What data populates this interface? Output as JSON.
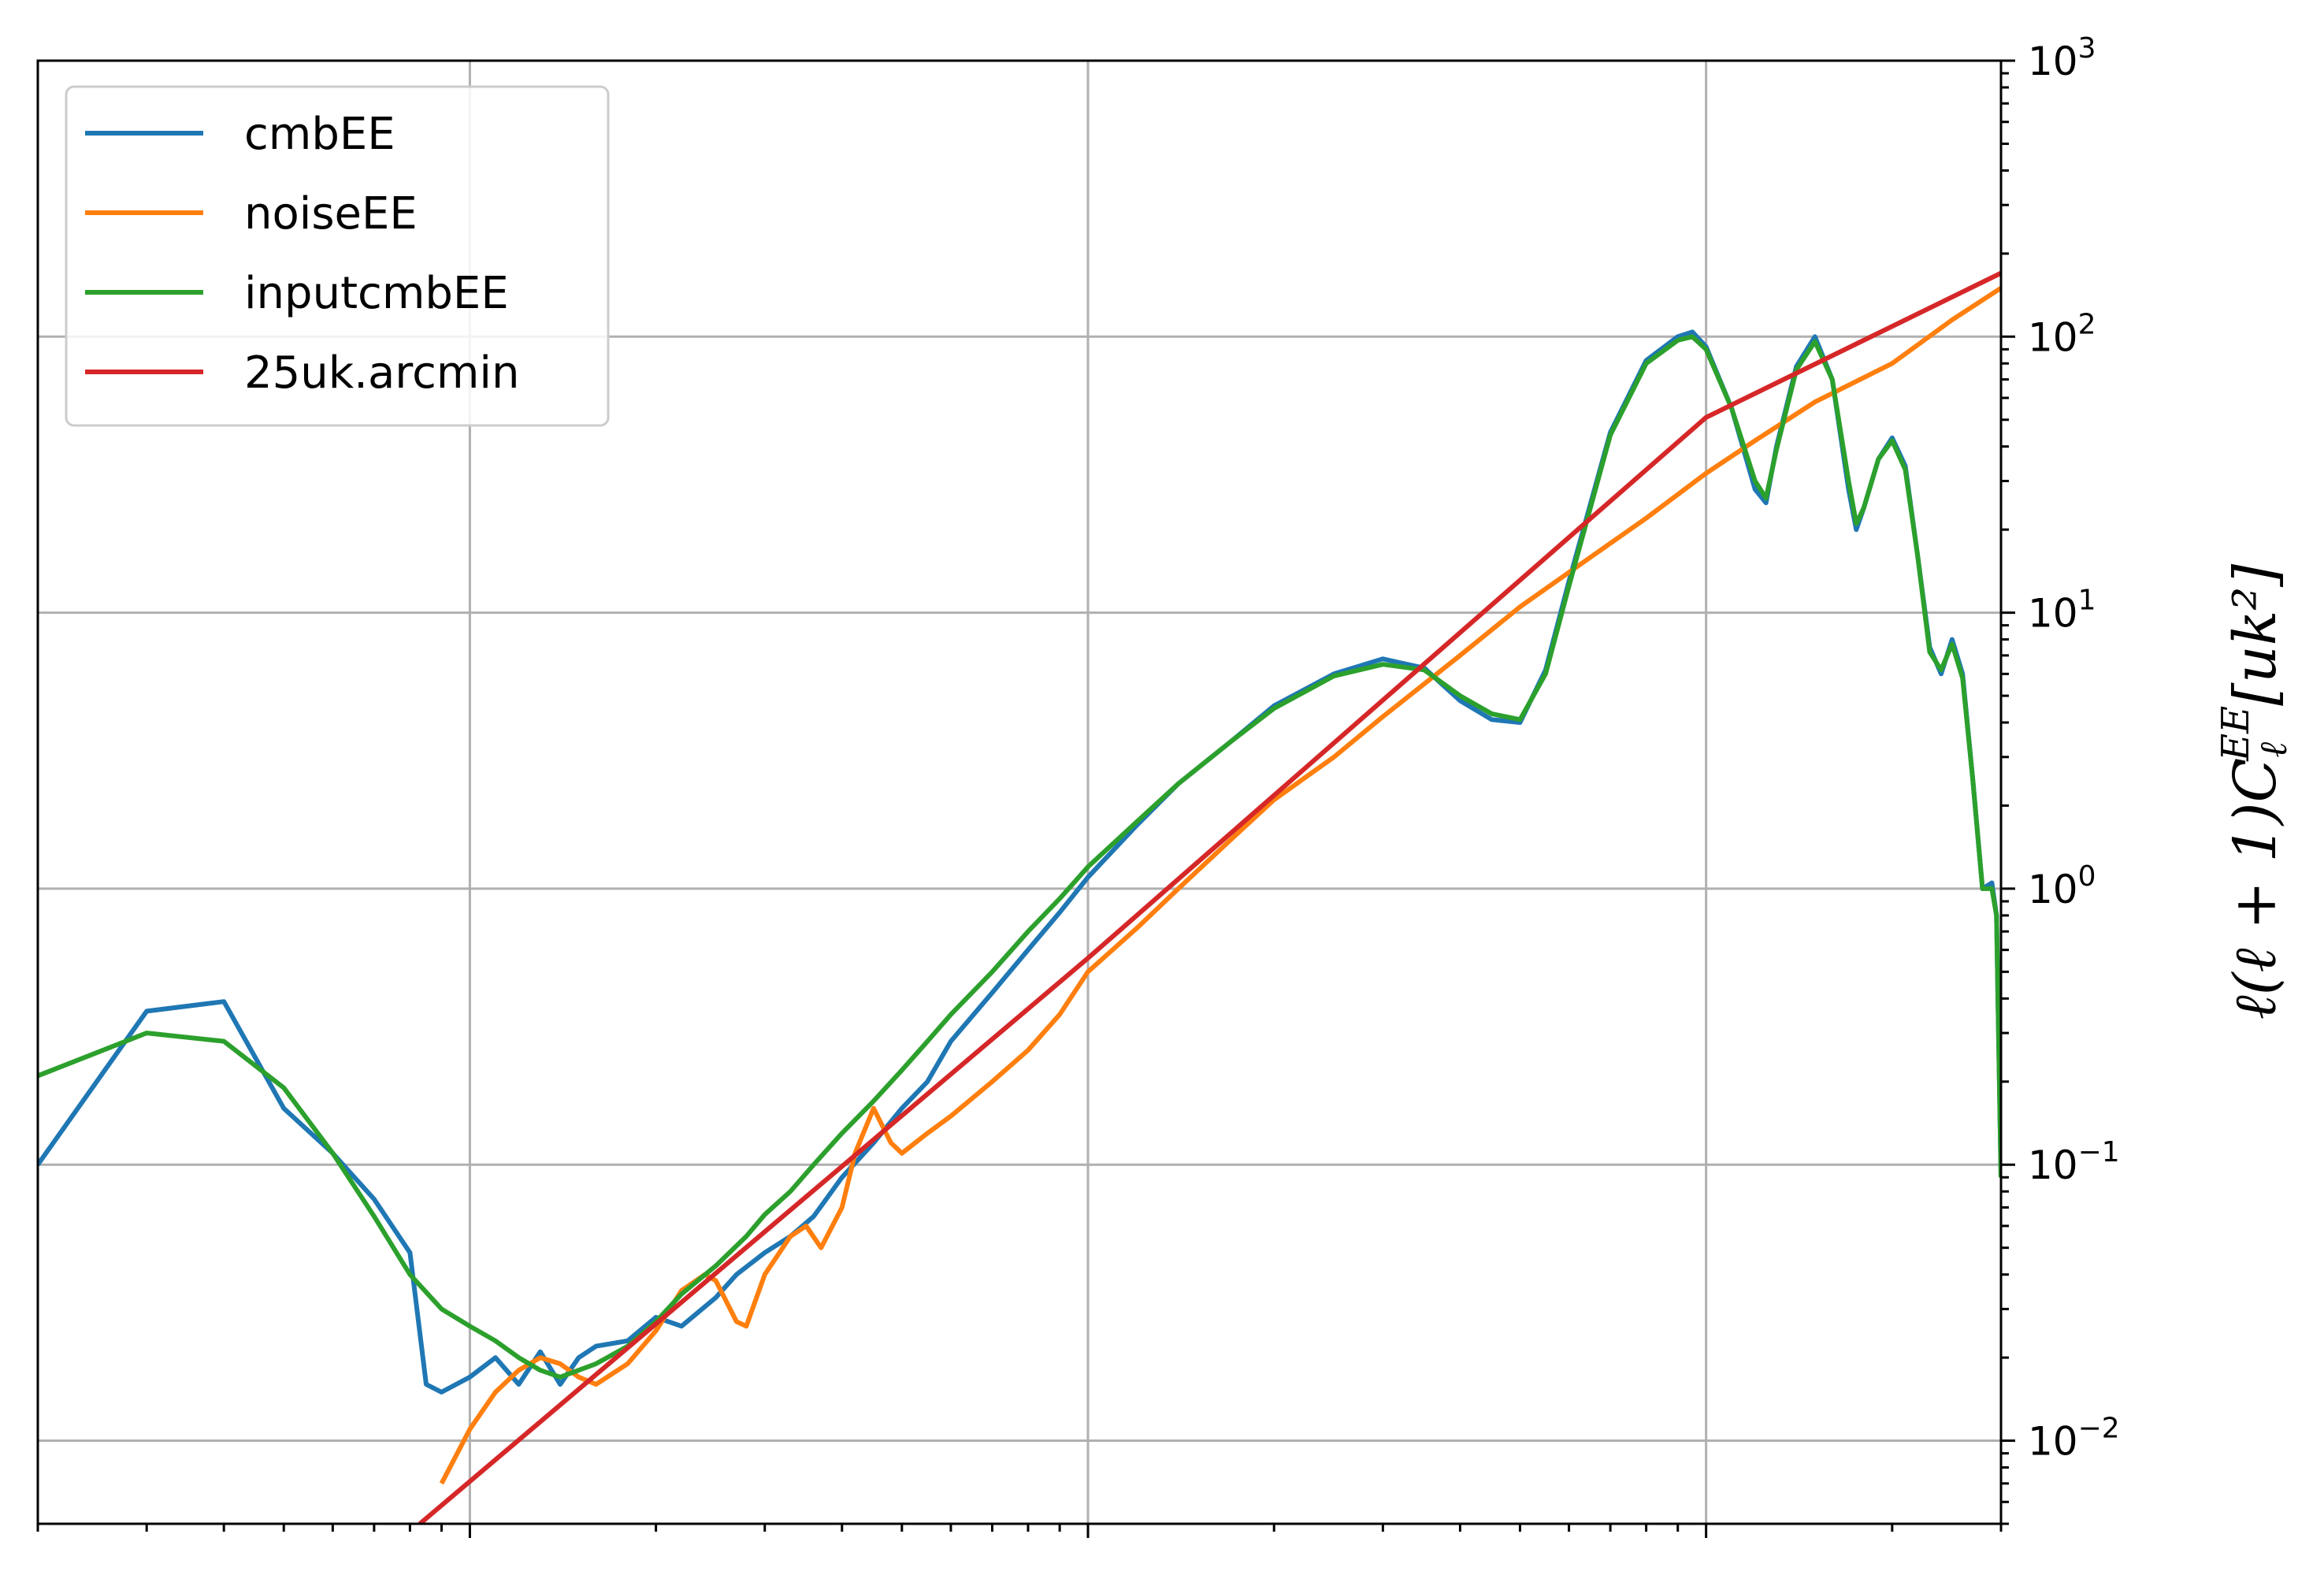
{
  "chart_data": {
    "type": "line",
    "x_scale": "log",
    "y_scale": "log",
    "xlim": [
      2,
      3000
    ],
    "ylim": [
      0.005,
      1000
    ],
    "grid": true,
    "legend_position": "upper-left",
    "y_axis_side": "right",
    "ylabel": "ℓ(ℓ + 1)C",
    "ylabel_sub": "ℓ",
    "ylabel_sup": "EE",
    "ylabel_unit": "[uk²]",
    "y_ticks": [
      {
        "value": 0.01,
        "base": "10",
        "exp": "−2"
      },
      {
        "value": 0.1,
        "base": "10",
        "exp": "−1"
      },
      {
        "value": 1,
        "base": "10",
        "exp": "0"
      },
      {
        "value": 10,
        "base": "10",
        "exp": "1"
      },
      {
        "value": 100,
        "base": "10",
        "exp": "2"
      },
      {
        "value": 1000,
        "base": "10",
        "exp": "3"
      }
    ],
    "x_major_ticks": [
      10,
      100,
      1000
    ],
    "series": [
      {
        "name": "cmbEE",
        "color": "#1f77b4",
        "points": [
          [
            2,
            0.1
          ],
          [
            3,
            0.36
          ],
          [
            4,
            0.39
          ],
          [
            5,
            0.16
          ],
          [
            6,
            0.11
          ],
          [
            7,
            0.075
          ],
          [
            8,
            0.048
          ],
          [
            8.5,
            0.016
          ],
          [
            9,
            0.015
          ],
          [
            10,
            0.017
          ],
          [
            11,
            0.02
          ],
          [
            12,
            0.016
          ],
          [
            13,
            0.021
          ],
          [
            14,
            0.016
          ],
          [
            15,
            0.02
          ],
          [
            16,
            0.022
          ],
          [
            18,
            0.023
          ],
          [
            20,
            0.028
          ],
          [
            22,
            0.026
          ],
          [
            25,
            0.033
          ],
          [
            27,
            0.04
          ],
          [
            30,
            0.048
          ],
          [
            33,
            0.055
          ],
          [
            36,
            0.065
          ],
          [
            40,
            0.09
          ],
          [
            45,
            0.12
          ],
          [
            50,
            0.16
          ],
          [
            55,
            0.2
          ],
          [
            60,
            0.28
          ],
          [
            70,
            0.42
          ],
          [
            80,
            0.6
          ],
          [
            90,
            0.82
          ],
          [
            100,
            1.1
          ],
          [
            120,
            1.7
          ],
          [
            140,
            2.4
          ],
          [
            170,
            3.4
          ],
          [
            200,
            4.6
          ],
          [
            250,
            6.0
          ],
          [
            300,
            6.8
          ],
          [
            350,
            6.3
          ],
          [
            400,
            4.8
          ],
          [
            450,
            4.1
          ],
          [
            500,
            4.0
          ],
          [
            550,
            6.2
          ],
          [
            600,
            13
          ],
          [
            700,
            45
          ],
          [
            800,
            82
          ],
          [
            900,
            100
          ],
          [
            950,
            104
          ],
          [
            1000,
            92
          ],
          [
            1100,
            55
          ],
          [
            1200,
            28
          ],
          [
            1250,
            25
          ],
          [
            1300,
            40
          ],
          [
            1400,
            78
          ],
          [
            1500,
            100
          ],
          [
            1600,
            70
          ],
          [
            1700,
            28
          ],
          [
            1750,
            20
          ],
          [
            1800,
            24
          ],
          [
            1900,
            36
          ],
          [
            2000,
            43
          ],
          [
            2100,
            34
          ],
          [
            2200,
            16
          ],
          [
            2300,
            7.5
          ],
          [
            2400,
            6.0
          ],
          [
            2500,
            8.0
          ],
          [
            2600,
            6.0
          ],
          [
            2700,
            2.5
          ],
          [
            2800,
            1.0
          ],
          [
            2900,
            1.05
          ],
          [
            2950,
            0.8
          ],
          [
            3000,
            0.09
          ]
        ]
      },
      {
        "name": "noiseEE",
        "color": "#ff7f0e",
        "points": [
          [
            9,
            0.007
          ],
          [
            10,
            0.011
          ],
          [
            11,
            0.015
          ],
          [
            12,
            0.018
          ],
          [
            13,
            0.02
          ],
          [
            14,
            0.019
          ],
          [
            15,
            0.017
          ],
          [
            16,
            0.016
          ],
          [
            18,
            0.019
          ],
          [
            20,
            0.025
          ],
          [
            22,
            0.035
          ],
          [
            24,
            0.04
          ],
          [
            25,
            0.038
          ],
          [
            27,
            0.027
          ],
          [
            28,
            0.026
          ],
          [
            30,
            0.04
          ],
          [
            33,
            0.055
          ],
          [
            35,
            0.06
          ],
          [
            37,
            0.05
          ],
          [
            40,
            0.07
          ],
          [
            42,
            0.11
          ],
          [
            45,
            0.16
          ],
          [
            48,
            0.12
          ],
          [
            50,
            0.11
          ],
          [
            55,
            0.13
          ],
          [
            60,
            0.15
          ],
          [
            70,
            0.2
          ],
          [
            80,
            0.26
          ],
          [
            90,
            0.35
          ],
          [
            100,
            0.5
          ],
          [
            120,
            0.72
          ],
          [
            140,
            1.0
          ],
          [
            170,
            1.5
          ],
          [
            200,
            2.1
          ],
          [
            250,
            3.0
          ],
          [
            300,
            4.2
          ],
          [
            400,
            7.0
          ],
          [
            500,
            10.5
          ],
          [
            600,
            14
          ],
          [
            800,
            22
          ],
          [
            1000,
            32
          ],
          [
            1200,
            42
          ],
          [
            1500,
            58
          ],
          [
            2000,
            80
          ],
          [
            2500,
            115
          ],
          [
            3000,
            150
          ]
        ]
      },
      {
        "name": "inputcmbEE",
        "color": "#2ca02c",
        "points": [
          [
            2,
            0.21
          ],
          [
            3,
            0.3
          ],
          [
            4,
            0.28
          ],
          [
            5,
            0.19
          ],
          [
            6,
            0.11
          ],
          [
            7,
            0.065
          ],
          [
            8,
            0.04
          ],
          [
            9,
            0.03
          ],
          [
            10,
            0.026
          ],
          [
            11,
            0.023
          ],
          [
            12,
            0.02
          ],
          [
            13,
            0.018
          ],
          [
            14,
            0.017
          ],
          [
            15,
            0.018
          ],
          [
            16,
            0.019
          ],
          [
            18,
            0.022
          ],
          [
            20,
            0.027
          ],
          [
            22,
            0.034
          ],
          [
            25,
            0.043
          ],
          [
            28,
            0.055
          ],
          [
            30,
            0.066
          ],
          [
            33,
            0.08
          ],
          [
            36,
            0.1
          ],
          [
            40,
            0.13
          ],
          [
            45,
            0.17
          ],
          [
            50,
            0.22
          ],
          [
            55,
            0.28
          ],
          [
            60,
            0.35
          ],
          [
            70,
            0.5
          ],
          [
            80,
            0.7
          ],
          [
            90,
            0.92
          ],
          [
            100,
            1.2
          ],
          [
            120,
            1.75
          ],
          [
            140,
            2.4
          ],
          [
            170,
            3.4
          ],
          [
            200,
            4.5
          ],
          [
            250,
            5.9
          ],
          [
            300,
            6.5
          ],
          [
            350,
            6.2
          ],
          [
            400,
            5.0
          ],
          [
            450,
            4.3
          ],
          [
            500,
            4.1
          ],
          [
            550,
            6.0
          ],
          [
            600,
            12.5
          ],
          [
            700,
            44
          ],
          [
            800,
            80
          ],
          [
            900,
            97
          ],
          [
            950,
            100
          ],
          [
            1000,
            90
          ],
          [
            1100,
            55
          ],
          [
            1200,
            30
          ],
          [
            1250,
            26
          ],
          [
            1300,
            39
          ],
          [
            1400,
            76
          ],
          [
            1500,
            96
          ],
          [
            1600,
            70
          ],
          [
            1700,
            30
          ],
          [
            1750,
            21
          ],
          [
            1800,
            24
          ],
          [
            1900,
            36
          ],
          [
            2000,
            42
          ],
          [
            2100,
            33
          ],
          [
            2200,
            16
          ],
          [
            2300,
            7.2
          ],
          [
            2400,
            6.2
          ],
          [
            2500,
            7.7
          ],
          [
            2600,
            5.8
          ],
          [
            2700,
            2.5
          ],
          [
            2800,
            1.0
          ],
          [
            2900,
            1.0
          ],
          [
            2950,
            0.8
          ],
          [
            3000,
            0.09
          ]
        ]
      },
      {
        "name": "25uk.arcmin",
        "color": "#d62728",
        "points": [
          [
            8.3,
            0.005
          ],
          [
            100,
            0.56
          ],
          [
            1000,
            51
          ],
          [
            3000,
            170
          ]
        ]
      }
    ]
  }
}
